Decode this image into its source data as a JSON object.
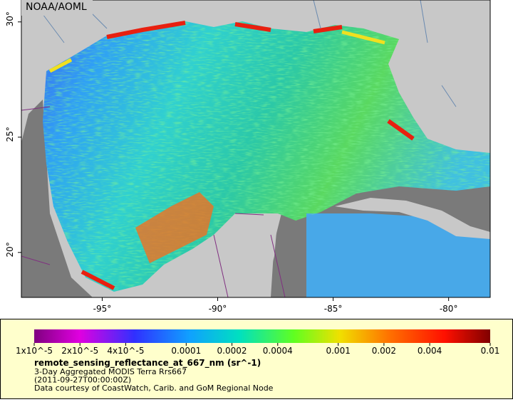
{
  "map": {
    "credit": "NOAA/AOML",
    "lon_range": [
      -98.5,
      -78.2
    ],
    "lat_range": [
      18.05,
      30.95
    ],
    "lat_ticks": [
      {
        "value": 30,
        "label": "30°"
      },
      {
        "value": 25,
        "label": "25°"
      },
      {
        "value": 20,
        "label": "20°"
      }
    ],
    "lon_ticks": [
      {
        "value": -95,
        "label": "-95°"
      },
      {
        "value": -90,
        "label": "-90°"
      },
      {
        "value": -85,
        "label": "-85°"
      },
      {
        "value": -80,
        "label": "-80°"
      }
    ]
  },
  "legend": {
    "range": [
      1e-05,
      0.01
    ],
    "log_scale": true,
    "ticks": [
      {
        "value": 1e-05,
        "label": "1x10^-5"
      },
      {
        "value": 2e-05,
        "label": "2x10^-5"
      },
      {
        "value": 4e-05,
        "label": "4x10^-5"
      },
      {
        "value": 0.0001,
        "label": "0.0001"
      },
      {
        "value": 0.0002,
        "label": "0.0002"
      },
      {
        "value": 0.0004,
        "label": "0.0004"
      },
      {
        "value": 0.001,
        "label": "0.001"
      },
      {
        "value": 0.002,
        "label": "0.002"
      },
      {
        "value": 0.004,
        "label": "0.004"
      },
      {
        "value": 0.01,
        "label": "0.01"
      }
    ],
    "title": "remote_sensing_reflectance_at_667_nm (sr^-1)",
    "lines": [
      "3-Day Aggregated MODIS Terra Rrs667",
      "(2011-09-27T00:00:00Z)",
      "Data courtesy of CoastWatch, Carib. and GoM Regional Node"
    ]
  }
}
